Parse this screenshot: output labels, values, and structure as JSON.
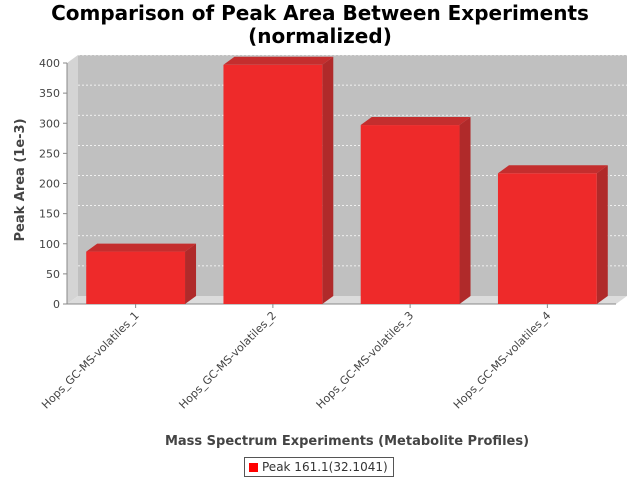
{
  "chart_data": {
    "type": "bar",
    "title_line1": "Comparison of Peak Area Between Experiments",
    "title_line2": "(normalized)",
    "xlabel": "Mass Spectrum Experiments (Metabolite Profiles)",
    "ylabel": "Peak Area (1e-3)",
    "categories": [
      "Hops_GC-MS-volatiles_1",
      "Hops_GC-MS-volatiles_2",
      "Hops_GC-MS-volatiles_3",
      "Hops_GC-MS-volatiles_4"
    ],
    "series": [
      {
        "name": "Peak 161.1(32.1041)",
        "values": [
          87,
          397,
          297,
          217
        ],
        "color": "#ee2a2a"
      }
    ],
    "yticks": [
      0,
      50,
      100,
      150,
      200,
      250,
      300,
      350,
      400
    ],
    "ylim": [
      0,
      400
    ],
    "grid": true,
    "legend_position": "bottom",
    "plot_background": "#c0c0c0"
  }
}
